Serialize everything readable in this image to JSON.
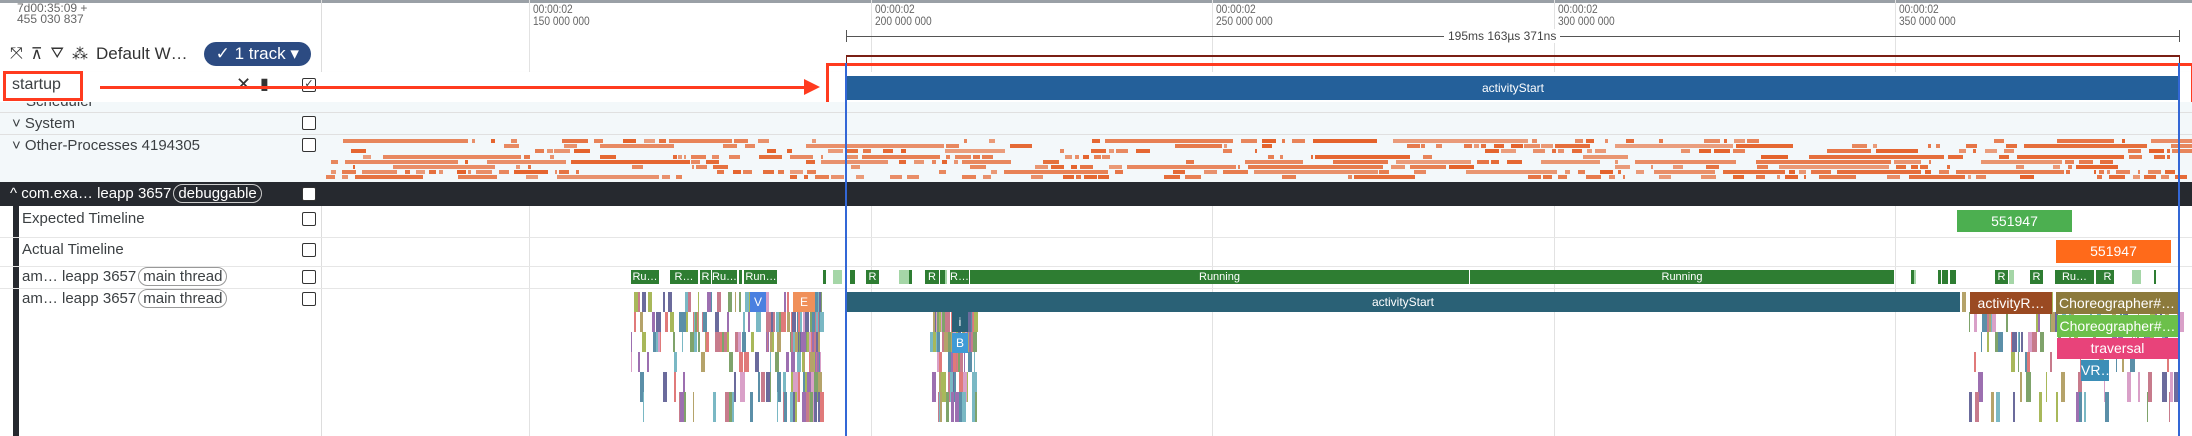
{
  "header": {
    "time_offset_line1": "7d00:35:09  +",
    "time_offset_line2": "455 030 837"
  },
  "ruler": {
    "ticks": [
      {
        "t1": "00:00:02",
        "t2": "150 000 000"
      },
      {
        "t1": "00:00:02",
        "t2": "200 000 000"
      },
      {
        "t1": "00:00:02",
        "t2": "250 000 000"
      },
      {
        "t1": "00:00:02",
        "t2": "300 000 000"
      },
      {
        "t1": "00:00:02",
        "t2": "350 000 000"
      }
    ],
    "measurement": "195ms 163µs 371ns"
  },
  "toolbar": {
    "workspace": "Default W…",
    "track_filter": "✓ 1 track ▾",
    "icons": [
      "collapse-all-icon",
      "unpin-icon",
      "filter-icon",
      "workspace-icon"
    ]
  },
  "pinned": {
    "label": "startup",
    "slice": "activityStart"
  },
  "tracks": {
    "scheduler": "Scheduler",
    "system": "System",
    "other": "Other-Processes 4194305",
    "process": {
      "name": "com.exa…  leapp 3657",
      "badge": "debuggable"
    },
    "expected": "Expected Timeline",
    "expected_slice": "551947",
    "actual": "Actual Timeline",
    "actual_slice": "551947",
    "thread1": {
      "name": "am… leapp 3657",
      "badge": "main thread"
    },
    "thread2": {
      "name": "am… leapp 3657",
      "badge": "main thread"
    }
  },
  "thread1_slices": [
    "Ru…",
    "R…",
    "R",
    "Ru…",
    "Run…",
    "R",
    "R",
    "R…",
    "Running",
    "Running",
    "R",
    "R",
    "Ru…",
    "R"
  ],
  "thread2_slices": {
    "main": "activityStart",
    "v": "V",
    "e": "E",
    "i": "i",
    "b": "B",
    "activity_r": "activityR…",
    "choreo1": "Choreographer#…",
    "choreo2": "Choreographer#…",
    "traversal": "traversal",
    "vr": "VR…"
  },
  "colors": {
    "annotation": "#ff3b1f",
    "selection": "#3367d6",
    "pinned_slice": "#24609a",
    "running": "#2e7d32",
    "other_proc": "#e4622b"
  }
}
